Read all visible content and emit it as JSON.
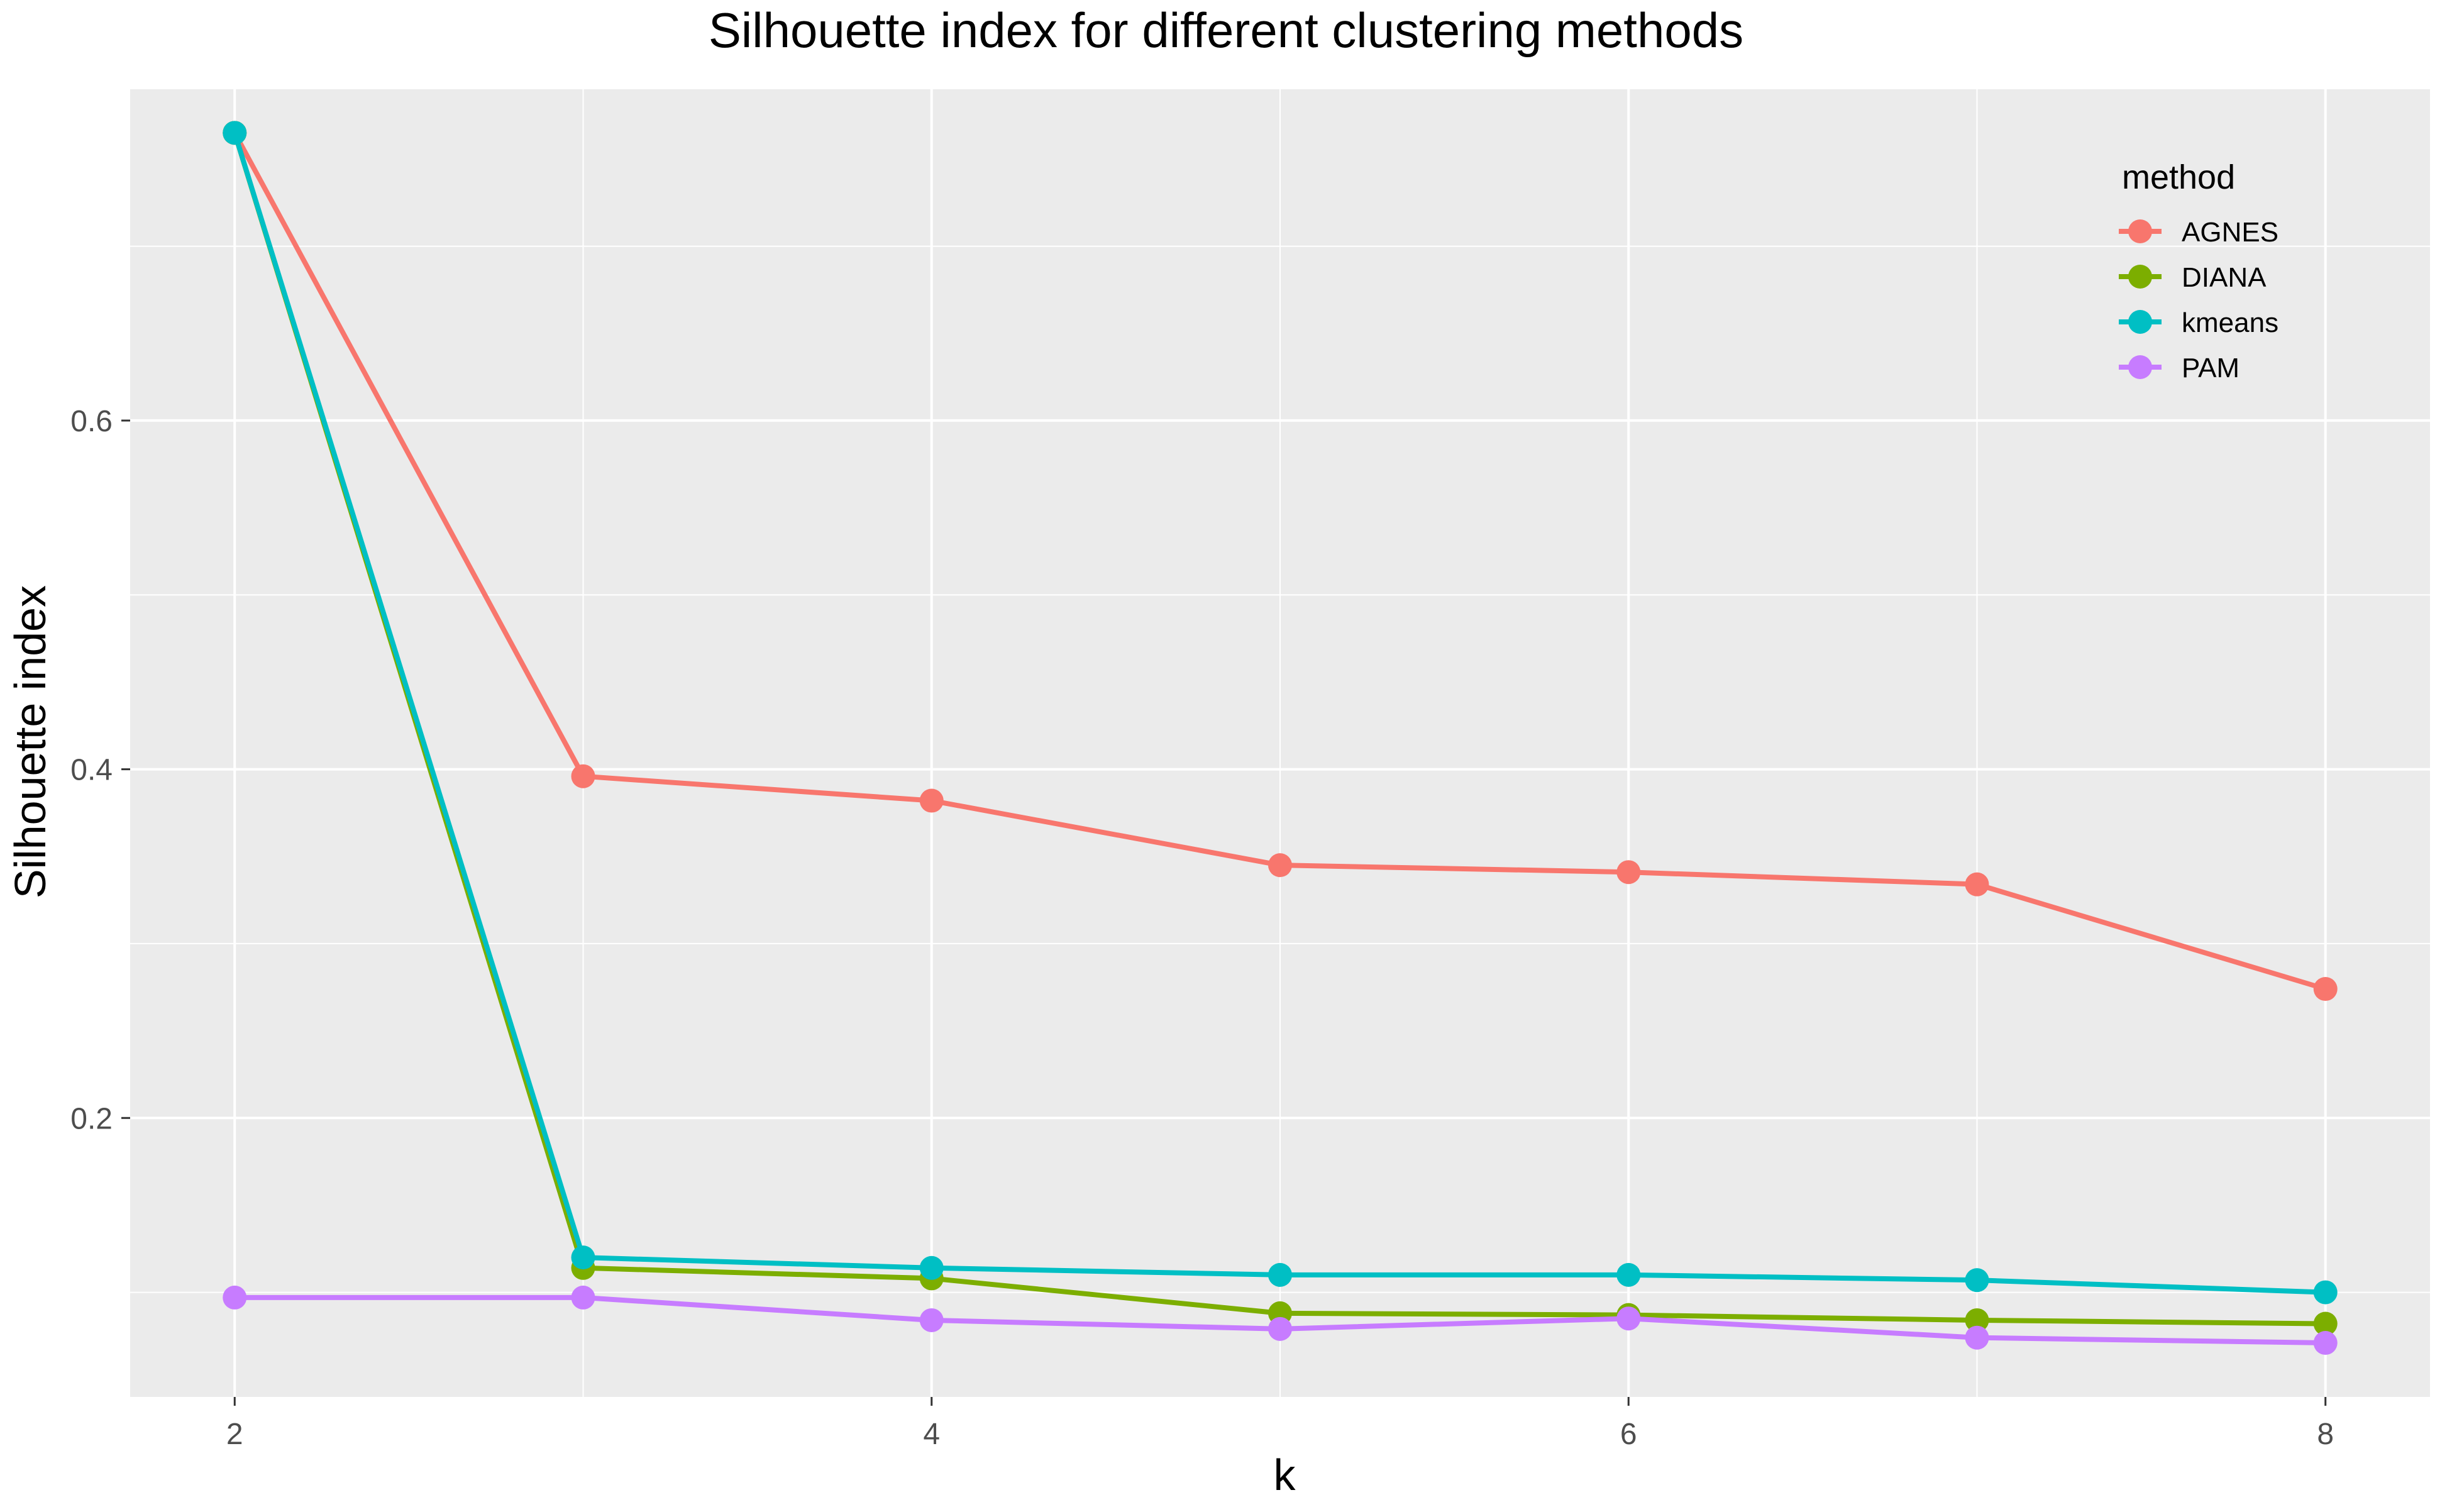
{
  "chart_data": {
    "type": "line",
    "title": "Silhouette index for different clustering methods",
    "xlabel": "k",
    "ylabel": "Silhouette index",
    "x": [
      2,
      3,
      4,
      5,
      6,
      7,
      8
    ],
    "xlim": [
      1.7,
      8.3
    ],
    "ylim": [
      0.04,
      0.79
    ],
    "x_ticks": [
      2,
      4,
      6,
      8
    ],
    "x_tick_labels": [
      "2",
      "4",
      "6",
      "8"
    ],
    "y_ticks": [
      0.2,
      0.4,
      0.6
    ],
    "y_tick_labels": [
      "0.2",
      "0.4",
      "0.6"
    ],
    "grid": true,
    "legend": {
      "title": "method",
      "position": "top-right"
    },
    "series": [
      {
        "name": "AGNES",
        "color": "#F8766D",
        "values": [
          0.765,
          0.396,
          0.382,
          0.345,
          0.341,
          0.334,
          0.274
        ]
      },
      {
        "name": "DIANA",
        "color": "#7CAE00",
        "values": [
          0.765,
          0.114,
          0.108,
          0.088,
          0.087,
          0.084,
          0.082
        ]
      },
      {
        "name": "kmeans",
        "color": "#00BFC4",
        "values": [
          0.765,
          0.12,
          0.114,
          0.11,
          0.11,
          0.107,
          0.1
        ]
      },
      {
        "name": "PAM",
        "color": "#C77CFF",
        "values": [
          0.097,
          0.097,
          0.084,
          0.079,
          0.085,
          0.074,
          0.071
        ]
      }
    ]
  }
}
